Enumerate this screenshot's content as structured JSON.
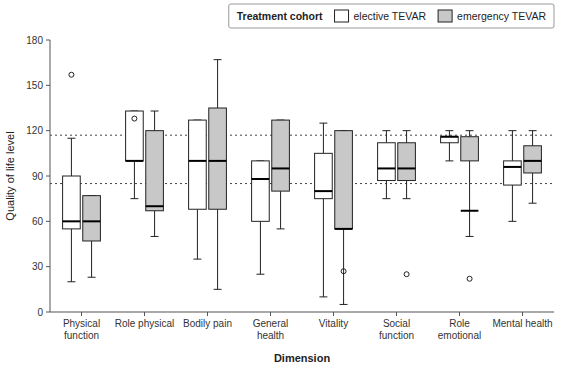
{
  "chart_data": {
    "type": "box",
    "categories": [
      "Physical\nfunction",
      "Role physical",
      "Bodily pain",
      "General\nhealth",
      "Vitality",
      "Social\nfunction",
      "Role\nemotional",
      "Mental health"
    ],
    "series": [
      {
        "name": "elective TEVAR",
        "color": "#ffffff",
        "whislo": [
          20,
          75,
          35,
          25,
          10,
          75,
          100,
          60
        ],
        "q1": [
          55,
          100,
          68,
          60,
          75,
          87,
          112,
          84
        ],
        "median": [
          60,
          100,
          100,
          88,
          80,
          95,
          116,
          96
        ],
        "q3": [
          90,
          133,
          127,
          100,
          105,
          112,
          116,
          100
        ],
        "whishi": [
          115,
          133,
          127,
          100,
          125,
          120,
          120,
          120
        ],
        "fliers": [
          [
            157
          ],
          [
            128
          ],
          [],
          [],
          [],
          [],
          [],
          []
        ]
      },
      {
        "name": "emergency TEVAR",
        "color": "#c8c8c8",
        "whislo": [
          23,
          50,
          15,
          55,
          5,
          75,
          50,
          72
        ],
        "q1": [
          47,
          67,
          68,
          80,
          55,
          87,
          100,
          92
        ],
        "median": [
          60,
          70,
          100,
          95,
          55,
          95,
          67,
          100
        ],
        "q3": [
          77,
          120,
          135,
          127,
          120,
          112,
          116,
          110
        ],
        "whishi": [
          77,
          133,
          167,
          127,
          120,
          120,
          120,
          120
        ],
        "fliers": [
          [],
          [],
          [],
          [],
          [
            27
          ],
          [
            25
          ],
          [
            22
          ],
          []
        ]
      }
    ],
    "hlines": [
      85,
      117
    ],
    "ylabel": "Quality of life level",
    "xlabel": "Dimension",
    "ylim": [
      0,
      180
    ],
    "yticks": [
      0,
      30,
      60,
      90,
      120,
      150,
      180
    ],
    "legend_title": "Treatment cohort",
    "legend": "upper right",
    "grid": false
  }
}
